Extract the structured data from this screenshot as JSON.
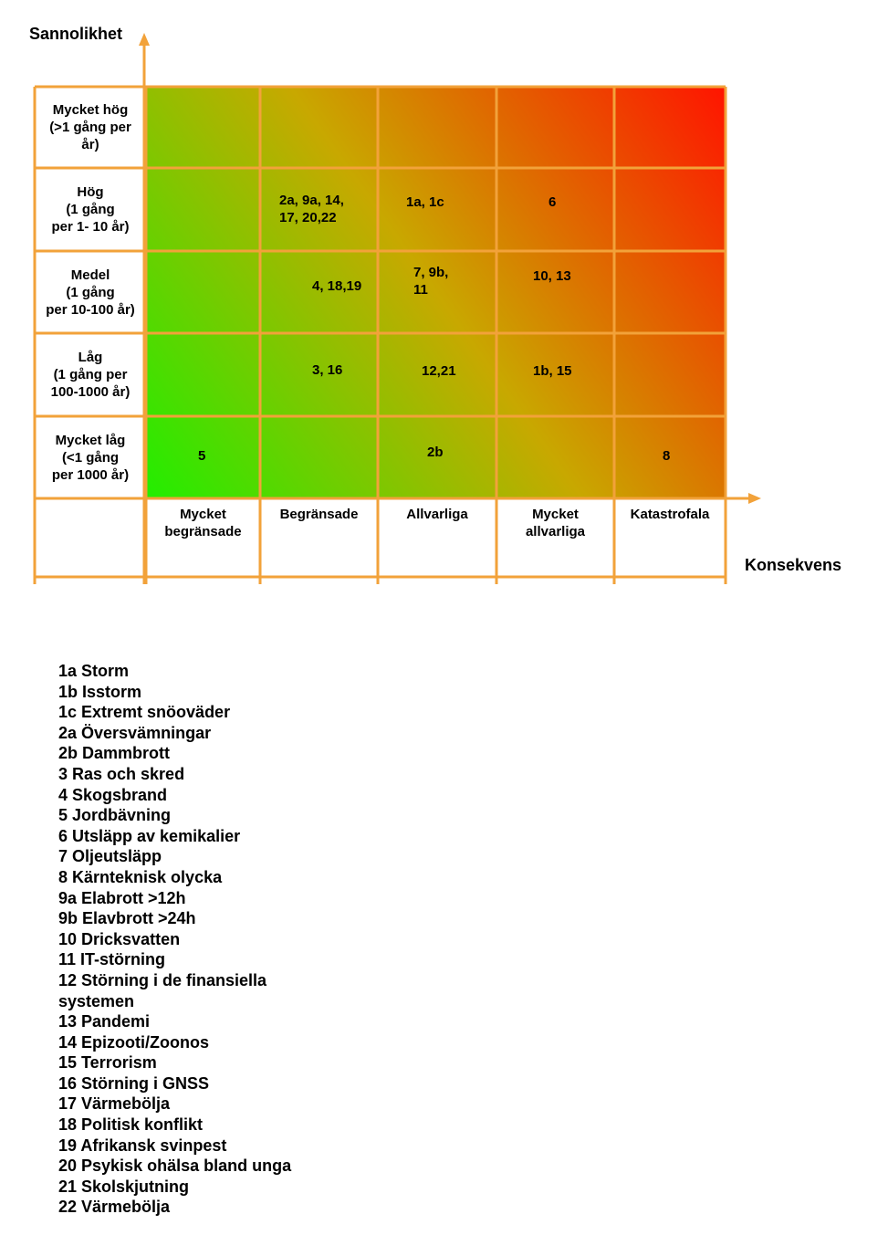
{
  "chart_data": {
    "type": "heatmap",
    "title": "",
    "ylabel": "Sannolikhet",
    "xlabel": "Konsekvens",
    "rows": [
      {
        "label": "Mycket hög\n(>1 gång per\når)"
      },
      {
        "label": "Hög\n(1 gång\nper 1- 10 år)"
      },
      {
        "label": "Medel\n(1 gång\nper 10-100 år)"
      },
      {
        "label": "Låg\n(1 gång per\n100-1000 år)"
      },
      {
        "label": "Mycket låg\n(<1 gång\nper 1000 år)"
      }
    ],
    "columns": [
      {
        "label": "Mycket\nbegränsade"
      },
      {
        "label": "Begränsade"
      },
      {
        "label": "Allvarliga"
      },
      {
        "label": "Mycket\nallvarliga"
      },
      {
        "label": "Katastrofala"
      }
    ],
    "cells": [
      {
        "row": 1,
        "col": 1,
        "text": "2a, 9a, 14,\n17, 20,22"
      },
      {
        "row": 1,
        "col": 2,
        "text": "1a, 1c"
      },
      {
        "row": 1,
        "col": 3,
        "text": "6"
      },
      {
        "row": 2,
        "col": 1,
        "text": "4, 18,19"
      },
      {
        "row": 2,
        "col": 2,
        "text": "7, 9b,\n11"
      },
      {
        "row": 2,
        "col": 3,
        "text": "10, 13"
      },
      {
        "row": 3,
        "col": 1,
        "text": "3, 16"
      },
      {
        "row": 3,
        "col": 2,
        "text": "12,21"
      },
      {
        "row": 3,
        "col": 3,
        "text": "1b, 15"
      },
      {
        "row": 4,
        "col": 0,
        "text": "5"
      },
      {
        "row": 4,
        "col": 2,
        "text": "2b"
      },
      {
        "row": 4,
        "col": 4,
        "text": "8"
      }
    ],
    "colors": {
      "low": "#22ee00",
      "mid": "#c8a800",
      "high": "#ff1400",
      "grid": "#f2a23a"
    }
  },
  "legend": [
    "1a Storm",
    "1b Isstorm",
    "1c Extremt snöoväder",
    "2a Översvämningar",
    "2b Dammbrott",
    "3 Ras och skred",
    "4 Skogsbrand",
    "5 Jordbävning",
    "6 Utsläpp av kemikalier",
    "7 Oljeutsläpp",
    "8 Kärnteknisk olycka",
    "9a Elabrott >12h",
    "9b Elavbrott >24h",
    "10 Dricksvatten",
    "11 IT-störning",
    "12 Störning i de finansiella systemen",
    "13 Pandemi",
    "14 Epizooti/Zoonos",
    "15 Terrorism",
    "16 Störning i GNSS",
    "17 Värmebölja",
    "18 Politisk konflikt",
    "19 Afrikansk svinpest",
    "20 Psykisk ohälsa bland unga",
    "21 Skolskjutning",
    "22 Värmebölja"
  ]
}
